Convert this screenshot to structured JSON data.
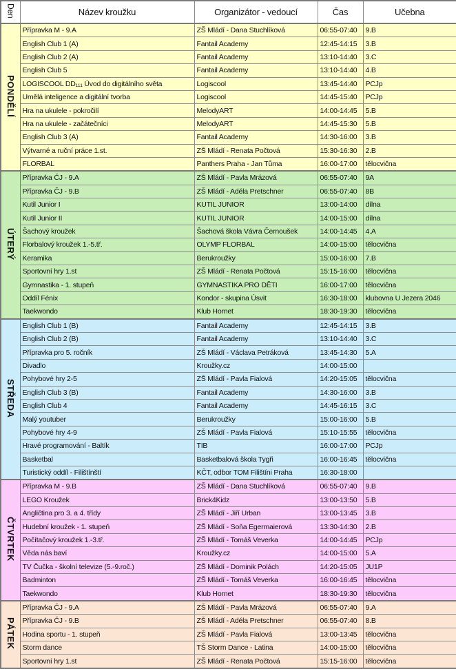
{
  "header": {
    "den": "Den",
    "name": "Název kroužku",
    "org": "Organizátor - vedoucí",
    "time": "Čas",
    "room": "Učebna"
  },
  "colors": {
    "pondeli": "#ffffc8",
    "utery": "#c6eeb6",
    "streda": "#caecfb",
    "ctvrtek": "#fccbfc",
    "patek": "#fde5d3"
  },
  "days": [
    {
      "label": "PONDĚLÍ",
      "color_key": "pondeli",
      "rows": [
        [
          "Přípravka M - 9.A",
          "ZŠ Mládí - Dana Stuchlíková",
          "06:55-07:40",
          "9.B"
        ],
        [
          "English Club 1 (A)",
          "Fantail Academy",
          "12:45-14:15",
          "3.B"
        ],
        [
          "English Club 2 (A)",
          "Fantail Academy",
          "13:10-14:40",
          "3.C"
        ],
        [
          "English Club 5",
          "Fantail Academy",
          "13:10-14:40",
          "4.B"
        ],
        [
          "LOGISCOOL DD₁₁₁ Úvod do digitálního světa",
          "Logiscool",
          "13:45-14:40",
          "PCJp"
        ],
        [
          "Umělá inteligence a digitální tvorba",
          "Logiscool",
          "14:45-15:40",
          "PCJp"
        ],
        [
          "Hra na ukulele - pokročilí",
          "MelodyART",
          "14:00-14:45",
          "5.B"
        ],
        [
          "Hra na ukulele - začátečníci",
          "MelodyART",
          "14:45-15:30",
          "5.B"
        ],
        [
          "English Club 3 (A)",
          "Fantail Academy",
          "14:30-16:00",
          "3.B"
        ],
        [
          "Výtvarné a ruční práce 1.st.",
          "ZŠ Mládí - Renata Počtová",
          "15:30-16:30",
          "2.B"
        ],
        [
          "FLORBAL",
          "Panthers Praha - Jan Tůma",
          "16:00-17:00",
          "tělocvična"
        ]
      ]
    },
    {
      "label": "ÚTERÝ",
      "color_key": "utery",
      "rows": [
        [
          "Přípravka ČJ - 9.A",
          "ZŠ Mládí - Pavla Mrázová",
          "06:55-07:40",
          "9A"
        ],
        [
          "Přípravka ČJ - 9.B",
          "ZŠ Mládí - Adéla Pretschner",
          "06:55-07:40",
          "8B"
        ],
        [
          "Kutil Junior I",
          "KUTIL JUNIOR",
          "13:00-14:00",
          "dílna"
        ],
        [
          "Kutil Junior II",
          "KUTIL JUNIOR",
          "14:00-15:00",
          "dílna"
        ],
        [
          "Šachový kroužek",
          "Šachová škola Vávra Černoušek",
          "14:00-14:45",
          "4.A"
        ],
        [
          "Florbalový kroužek 1.-5.tř.",
          "OLYMP FLORBAL",
          "14:00-15:00",
          "tělocvična"
        ],
        [
          "Keramika",
          "Berukroužky",
          "15:00-16:00",
          "7.B"
        ],
        [
          "Sportovní hry 1.st",
          "ZŠ Mládí - Renata Počtová",
          "15:15-16:00",
          "tělocvična"
        ],
        [
          "Gymnastika - 1. stupeň",
          "GYMNASTIKA PRO DĚTI",
          "16:00-17:00",
          "tělocvična"
        ],
        [
          "Oddíl Fénix",
          "Kondor - skupina Úsvit",
          "16:30-18:00",
          "klubovna U Jezera 2046"
        ],
        [
          "Taekwondo",
          "Klub Hornet",
          "18:30-19:30",
          "tělocvična"
        ]
      ]
    },
    {
      "label": "STŘEDA",
      "color_key": "streda",
      "rows": [
        [
          "English Club 1 (B)",
          "Fantail Academy",
          "12:45-14:15",
          "3.B"
        ],
        [
          "English Club 2 (B)",
          "Fantail Academy",
          "13:10-14:40",
          "3.C"
        ],
        [
          "Přípravka pro 5. ročník",
          "ZŠ Mládí - Václava Petráková",
          "13:45-14:30",
          "5.A"
        ],
        [
          "Divadlo",
          "Kroužky.cz",
          "14:00-15:00",
          ""
        ],
        [
          "Pohybové hry 2-5",
          "ZŠ Mládí - Pavla Fialová",
          "14:20-15:05",
          "tělocvična"
        ],
        [
          "English Club 3 (B)",
          "Fantail Academy",
          "14:30-16:00",
          "3.B"
        ],
        [
          "English Club 4",
          "Fantail Academy",
          "14:45-16:15",
          "3.C"
        ],
        [
          "Malý youtuber",
          "Berukroužky",
          "15:00-16:00",
          "5.B"
        ],
        [
          "Pohybové hry 4-9",
          "ZŠ Mládí - Pavla Fialová",
          "15:10-15:55",
          "tělocvična"
        ],
        [
          "Hravé programování - Baltík",
          "TIB",
          "16:00-17:00",
          "PCJp"
        ],
        [
          "Basketbal",
          "Basketbalová škola Tygři",
          "16:00-16:45",
          "tělocvična"
        ],
        [
          "Turistický oddíl - Filištínští",
          "KČT, odbor TOM Filištíni Praha",
          "16:30-18:00",
          ""
        ]
      ]
    },
    {
      "label": "ČTVRTEK",
      "color_key": "ctvrtek",
      "rows": [
        [
          "Přípravka M - 9.B",
          "ZŠ Mládí - Dana Stuchlíková",
          "06:55-07:40",
          "9.B"
        ],
        [
          "LEGO Kroužek",
          "Brick4Kidz",
          "13:00-13:50",
          "5.B"
        ],
        [
          "Angličtina pro 3. a 4. třídy",
          "ZŠ Mládí - Jiří Urban",
          "13:00-13:45",
          "3.B"
        ],
        [
          "Hudební kroužek - 1. stupeň",
          "ZŠ Mládí - Soňa Egermaierová",
          "13:30-14:30",
          "2.B"
        ],
        [
          "Počítačový kroužek 1.-3.tř.",
          "ZŠ Mládí - Tomáš Veverka",
          "14:00-14:45",
          "PCJp"
        ],
        [
          "Věda nás baví",
          "Kroužky.cz",
          "14:00-15:00",
          "5.A"
        ],
        [
          "TV Čučka - školní televize (5.-9.roč.)",
          "ZŠ Mládí - Dominik Polách",
          "14:20-15:05",
          "JU1P"
        ],
        [
          "Badminton",
          "ZŠ Mládí - Tomáš Veverka",
          "16:00-16:45",
          "tělocvična"
        ],
        [
          "Taekwondo",
          "Klub Hornet",
          "18:30-19:30",
          "tělocvična"
        ]
      ]
    },
    {
      "label": "PÁTEK",
      "color_key": "patek",
      "rows": [
        [
          "Přípravka ČJ - 9.A",
          "ZŠ Mládí - Pavla Mrázová",
          "06:55-07:40",
          "9.A"
        ],
        [
          "Přípravka ČJ - 9.B",
          "ZŠ Mládí - Adéla Pretschner",
          "06:55-07:40",
          "8.B"
        ],
        [
          "Hodina sportu - 1. stupeň",
          "ZŠ Mládí - Pavla Fialová",
          "13:00-13:45",
          "tělocvična"
        ],
        [
          "Storm dance",
          "TŠ Storm Dance - Latina",
          "14:00-15:00",
          "tělocvična"
        ],
        [
          "Sportovní hry 1.st",
          "ZŠ Mládí - Renata Počtová",
          "15:15-16:00",
          "tělocvična"
        ]
      ]
    }
  ]
}
